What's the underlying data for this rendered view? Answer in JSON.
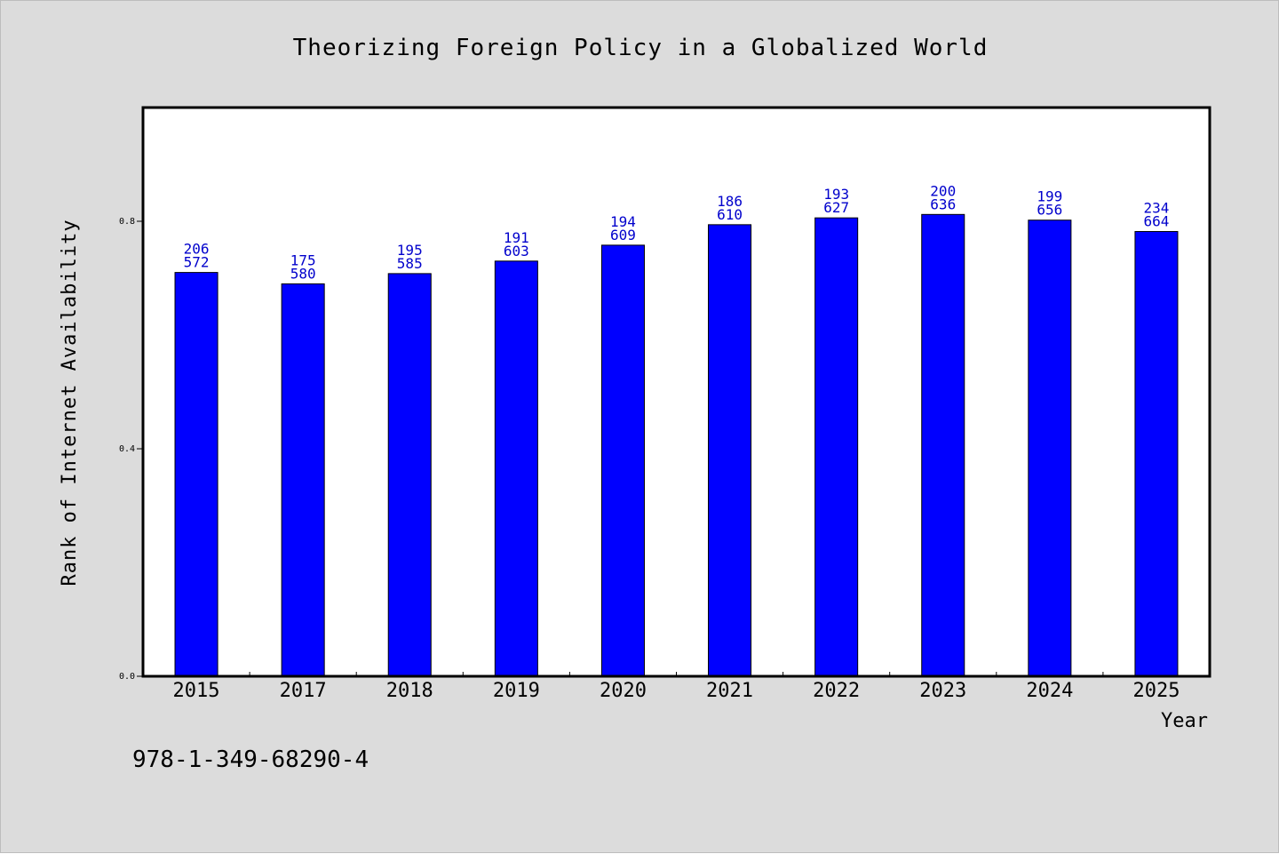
{
  "chart_data": {
    "type": "bar",
    "title": "Theorizing Foreign Policy in a Globalized World",
    "xlabel": "Year",
    "ylabel": "Rank of Internet Availability",
    "categories": [
      "2015",
      "2017",
      "2018",
      "2019",
      "2020",
      "2021",
      "2022",
      "2023",
      "2024",
      "2025"
    ],
    "values": [
      0.71,
      0.69,
      0.708,
      0.73,
      0.758,
      0.794,
      0.806,
      0.812,
      0.802,
      0.782
    ],
    "bar_labels": [
      [
        "206",
        "572"
      ],
      [
        "175",
        "580"
      ],
      [
        "195",
        "585"
      ],
      [
        "191",
        "603"
      ],
      [
        "194",
        "609"
      ],
      [
        "186",
        "610"
      ],
      [
        "193",
        "627"
      ],
      [
        "200",
        "636"
      ],
      [
        "199",
        "656"
      ],
      [
        "234",
        "664"
      ]
    ],
    "yticks": [
      "0.0",
      "0.4",
      "0.8"
    ],
    "ytick_values": [
      0.0,
      0.4,
      0.8
    ],
    "ylim": [
      0,
      1.0
    ],
    "grid": false,
    "colors": {
      "bar": "#0000ff",
      "bar_label": "#0000cc",
      "plot_bg": "#ffffff",
      "page_bg": "#dcdcdc"
    }
  },
  "footer": {
    "isbn": "978-1-349-68290-4"
  }
}
